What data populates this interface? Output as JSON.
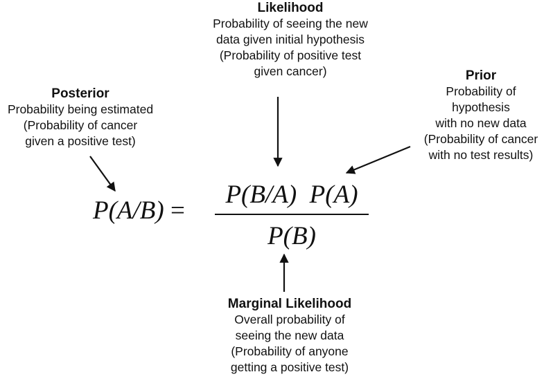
{
  "likelihood": {
    "title": "Likelihood",
    "lines": [
      "Probability of seeing the new",
      "data given initial hypothesis",
      "(Probability of positive test",
      "given cancer)"
    ]
  },
  "posterior": {
    "title": "Posterior",
    "lines": [
      "Probability being estimated",
      "(Probability of cancer",
      "given a positive test)"
    ]
  },
  "prior": {
    "title": "Prior",
    "lines": [
      "Probability of",
      "hypothesis",
      "with no new data",
      "(Probability of cancer",
      "with no test results)"
    ]
  },
  "marginal": {
    "title": "Marginal Likelihood",
    "lines": [
      "Overall probability of",
      "seeing the new data",
      "(Probability of anyone",
      "getting a positive test)"
    ]
  },
  "formula": {
    "lhs": "P(A/B)",
    "equals": "=",
    "numerator": "P(B/A)  P(A)",
    "denominator": "P(B)"
  }
}
